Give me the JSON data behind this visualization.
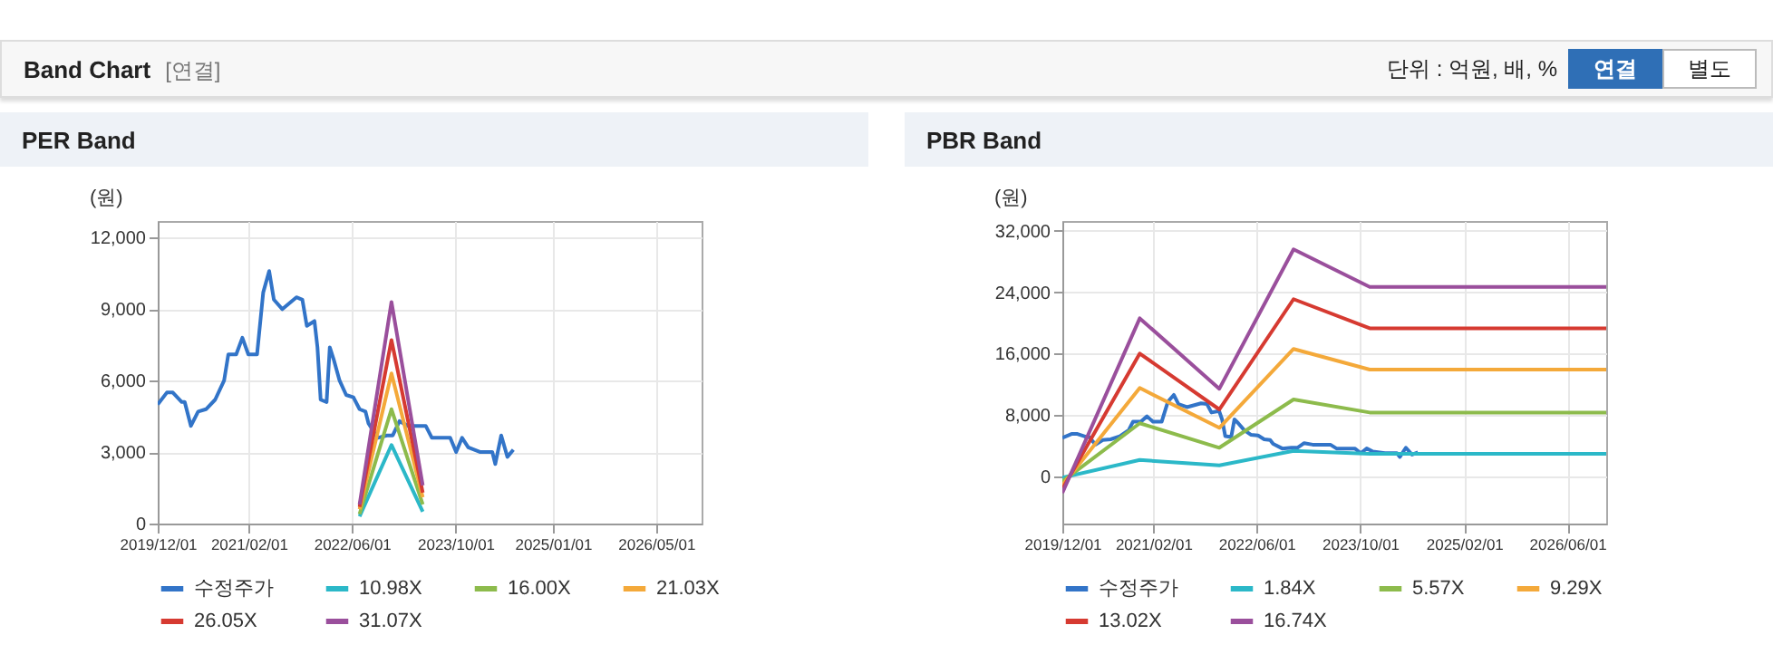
{
  "chart_data": [
    {
      "type": "other",
      "title": "Band Chart",
      "annotations": [
        "[연결]",
        "단위 : 억원, 배, %",
        "연결",
        "별도"
      ]
    },
    {
      "type": "line",
      "title": "PER Band",
      "ylabel": "(원)",
      "xlim": [
        "2019-12-01",
        "2026-12-01"
      ],
      "xticks": [
        {
          "value": "2019-12-01",
          "label": "2019/12/01"
        },
        {
          "value": "2021-02-01",
          "label": "2021/02/01"
        },
        {
          "value": "2022-06-01",
          "label": "2022/06/01"
        },
        {
          "value": "2023-10-01",
          "label": "2023/10/01"
        },
        {
          "value": "2025-01-01",
          "label": "2025/01/01"
        },
        {
          "value": "2026-05-01",
          "label": "2026/05/01"
        }
      ],
      "ylim": [
        0,
        12700
      ],
      "yticks": [
        {
          "value": 0,
          "label": "0"
        },
        {
          "value": 3000,
          "label": "3,000"
        },
        {
          "value": 6000,
          "label": "6,000"
        },
        {
          "value": 9000,
          "label": "9,000"
        },
        {
          "value": 12000,
          "label": "12,000"
        }
      ],
      "grid": true,
      "legend": "bottom",
      "series": [
        {
          "name": "수정주가",
          "color": "#3274c8",
          "x": [
            "2019-12-01",
            "2020-01-13",
            "2020-02-10",
            "2020-03-23",
            "2020-04-06",
            "2020-05-05",
            "2020-06-08",
            "2020-07-15",
            "2020-08-27",
            "2020-10-08",
            "2020-10-28",
            "2020-12-04",
            "2021-01-02",
            "2021-01-30",
            "2021-03-12",
            "2021-04-10",
            "2021-05-08",
            "2021-05-30",
            "2021-07-09",
            "2021-09-13",
            "2021-10-11",
            "2021-11-01",
            "2021-12-07",
            "2021-12-21",
            "2022-01-05",
            "2022-02-02",
            "2022-02-17",
            "2022-03-07",
            "2022-04-04",
            "2022-05-05",
            "2022-06-08",
            "2022-07-07",
            "2022-08-04",
            "2022-08-18",
            "2022-09-30",
            "2022-11-12",
            "2022-12-10",
            "2023-01-11",
            "2023-02-20",
            "2023-04-01",
            "2023-05-14",
            "2023-06-12",
            "2023-07-10",
            "2023-09-06",
            "2023-10-04",
            "2023-11-01",
            "2023-11-30",
            "2024-01-26",
            "2024-03-22",
            "2024-04-05",
            "2024-05-03",
            "2024-06-01",
            "2024-06-29"
          ],
          "values": [
            5000,
            5500,
            5500,
            5100,
            5100,
            4100,
            4700,
            4800,
            5200,
            6000,
            7100,
            7100,
            7800,
            7100,
            7100,
            9700,
            10600,
            9400,
            9000,
            9500,
            9400,
            8300,
            8500,
            7400,
            5200,
            5100,
            7400,
            6900,
            6000,
            5400,
            5300,
            4800,
            4700,
            4200,
            3600,
            3700,
            3700,
            4300,
            4100,
            4100,
            4100,
            3600,
            3600,
            3600,
            3000,
            3600,
            3200,
            3000,
            3000,
            2500,
            3700,
            2800,
            3100
          ]
        },
        {
          "name": "10.98X",
          "color": "#2bb8c8",
          "x": [
            "2022-07-07",
            "2022-12-04",
            "2023-04-30"
          ],
          "values": [
            300,
            3300,
            500
          ]
        },
        {
          "name": "16.00X",
          "color": "#8dbb4c",
          "x": [
            "2022-07-07",
            "2022-12-04",
            "2023-04-30"
          ],
          "values": [
            400,
            4800,
            800
          ]
        },
        {
          "name": "21.03X",
          "color": "#f4a93a",
          "x": [
            "2022-07-07",
            "2022-12-04",
            "2023-04-30"
          ],
          "values": [
            600,
            6300,
            1100
          ]
        },
        {
          "name": "26.05X",
          "color": "#d63a31",
          "x": [
            "2022-07-07",
            "2022-12-04",
            "2023-04-30"
          ],
          "values": [
            700,
            7700,
            1300
          ]
        },
        {
          "name": "31.07X",
          "color": "#9a4f9c",
          "x": [
            "2022-07-07",
            "2022-12-04",
            "2023-04-30"
          ],
          "values": [
            800,
            9300,
            1600
          ]
        }
      ]
    },
    {
      "type": "line",
      "title": "PBR Band",
      "ylabel": "(원)",
      "xlim": [
        "2019-12-01",
        "2026-12-01"
      ],
      "xticks": [
        {
          "value": "2019-12-01",
          "label": "2019/12/01"
        },
        {
          "value": "2021-02-01",
          "label": "2021/02/01"
        },
        {
          "value": "2022-06-01",
          "label": "2022/06/01"
        },
        {
          "value": "2023-10-01",
          "label": "2023/10/01"
        },
        {
          "value": "2025-02-01",
          "label": "2025/02/01"
        },
        {
          "value": "2026-06-01",
          "label": "2026/06/01"
        }
      ],
      "ylim": [
        -6200,
        33300
      ],
      "yticks": [
        {
          "value": 0,
          "label": "0"
        },
        {
          "value": 8000,
          "label": "8,000"
        },
        {
          "value": 16000,
          "label": "16,000"
        },
        {
          "value": 24000,
          "label": "24,000"
        },
        {
          "value": 32000,
          "label": "32,000"
        }
      ],
      "grid": true,
      "legend": "bottom",
      "series": [
        {
          "name": "수정주가",
          "color": "#3274c8",
          "x": [
            "2019-12-01",
            "2020-01-13",
            "2020-02-10",
            "2020-03-23",
            "2020-04-06",
            "2020-05-05",
            "2020-06-08",
            "2020-07-15",
            "2020-08-27",
            "2020-10-08",
            "2020-10-28",
            "2020-12-04",
            "2021-01-02",
            "2021-01-30",
            "2021-03-12",
            "2021-04-10",
            "2021-05-08",
            "2021-05-30",
            "2021-07-09",
            "2021-09-13",
            "2021-10-11",
            "2021-11-01",
            "2021-12-07",
            "2021-12-21",
            "2022-01-05",
            "2022-02-02",
            "2022-02-17",
            "2022-03-07",
            "2022-04-04",
            "2022-05-05",
            "2022-06-08",
            "2022-07-07",
            "2022-08-04",
            "2022-08-18",
            "2022-09-30",
            "2022-11-12",
            "2022-12-10",
            "2023-01-11",
            "2023-02-20",
            "2023-04-01",
            "2023-05-14",
            "2023-06-12",
            "2023-07-10",
            "2023-09-06",
            "2023-10-04",
            "2023-11-01",
            "2023-11-30",
            "2024-01-26",
            "2024-03-22",
            "2024-04-05",
            "2024-05-03",
            "2024-06-01",
            "2024-06-29"
          ],
          "values": [
            5000,
            5500,
            5500,
            5100,
            5100,
            4100,
            4700,
            4800,
            5200,
            6000,
            7100,
            7100,
            7800,
            7100,
            7100,
            9700,
            10600,
            9400,
            9000,
            9500,
            9400,
            8300,
            8500,
            7400,
            5200,
            5100,
            7400,
            6900,
            6000,
            5400,
            5300,
            4800,
            4700,
            4200,
            3600,
            3700,
            3700,
            4300,
            4100,
            4100,
            4100,
            3600,
            3600,
            3600,
            3000,
            3600,
            3200,
            3000,
            3000,
            2500,
            3700,
            2800,
            3100
          ]
        },
        {
          "name": "1.84X",
          "color": "#2bb8c8",
          "x": [
            "2019-12-01",
            "2020-11-29",
            "2021-12-08",
            "2022-11-22",
            "2023-11-15",
            "2026-12-01"
          ],
          "values": [
            -200,
            2100,
            1400,
            3300,
            2900,
            2900
          ]
        },
        {
          "name": "5.57X",
          "color": "#8dbb4c",
          "x": [
            "2019-12-01",
            "2020-11-29",
            "2021-12-08",
            "2022-11-22",
            "2023-11-15",
            "2026-12-01"
          ],
          "values": [
            -700,
            6900,
            3700,
            10000,
            8300,
            8300
          ]
        },
        {
          "name": "9.29X",
          "color": "#f4a93a",
          "x": [
            "2019-12-01",
            "2020-11-29",
            "2021-12-08",
            "2022-11-22",
            "2023-11-15",
            "2026-12-01"
          ],
          "values": [
            -1200,
            11500,
            6300,
            16600,
            13900,
            13900
          ]
        },
        {
          "name": "13.02X",
          "color": "#d63a31",
          "x": [
            "2019-12-01",
            "2020-11-29",
            "2021-12-08",
            "2022-11-22",
            "2023-11-15",
            "2026-12-01"
          ],
          "values": [
            -1700,
            16000,
            8700,
            23100,
            19300,
            19300
          ]
        },
        {
          "name": "16.74X",
          "color": "#9a4f9c",
          "x": [
            "2019-12-01",
            "2020-11-29",
            "2021-12-08",
            "2022-11-22",
            "2023-11-15",
            "2026-12-01"
          ],
          "values": [
            -2200,
            20600,
            11400,
            29600,
            24700,
            24700
          ]
        }
      ]
    }
  ]
}
